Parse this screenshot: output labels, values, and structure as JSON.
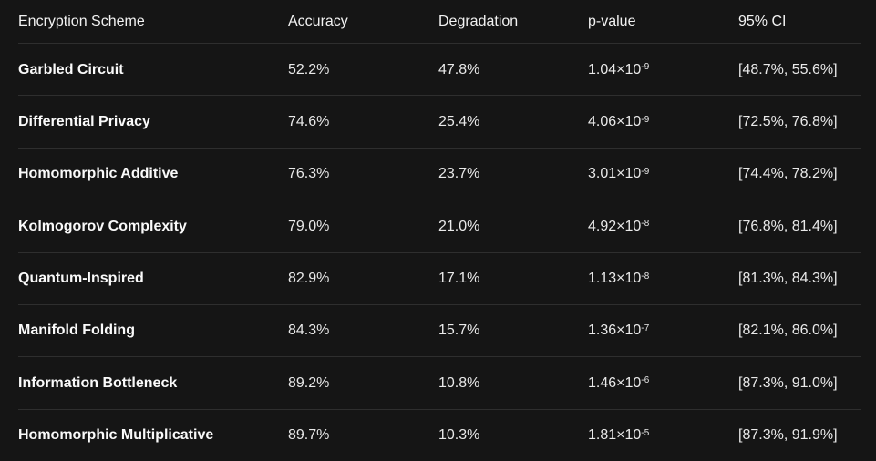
{
  "colors": {
    "background": "#151515",
    "divider": "#2e2e2e",
    "header_text": "#f2f2f2",
    "scheme_text": "#fafafa",
    "value_text": "#e9e9e9"
  },
  "table": {
    "headers": [
      "Encryption Scheme",
      "Accuracy",
      "Degradation",
      "p-value",
      "95% CI"
    ],
    "rows": [
      {
        "scheme": "Garbled Circuit",
        "accuracy": "52.2%",
        "degradation": "47.8%",
        "p_base": "1.04×10",
        "p_exp": "-9",
        "ci": "[48.7%, 55.6%]"
      },
      {
        "scheme": "Differential Privacy",
        "accuracy": "74.6%",
        "degradation": "25.4%",
        "p_base": "4.06×10",
        "p_exp": "-9",
        "ci": "[72.5%, 76.8%]"
      },
      {
        "scheme": "Homomorphic Additive",
        "accuracy": "76.3%",
        "degradation": "23.7%",
        "p_base": "3.01×10",
        "p_exp": "-9",
        "ci": "[74.4%, 78.2%]"
      },
      {
        "scheme": "Kolmogorov Complexity",
        "accuracy": "79.0%",
        "degradation": "21.0%",
        "p_base": "4.92×10",
        "p_exp": "-8",
        "ci": "[76.8%, 81.4%]"
      },
      {
        "scheme": "Quantum-Inspired",
        "accuracy": "82.9%",
        "degradation": "17.1%",
        "p_base": "1.13×10",
        "p_exp": "-8",
        "ci": "[81.3%, 84.3%]"
      },
      {
        "scheme": "Manifold Folding",
        "accuracy": "84.3%",
        "degradation": "15.7%",
        "p_base": "1.36×10",
        "p_exp": "-7",
        "ci": "[82.1%, 86.0%]"
      },
      {
        "scheme": "Information Bottleneck",
        "accuracy": "89.2%",
        "degradation": "10.8%",
        "p_base": "1.46×10",
        "p_exp": "-6",
        "ci": "[87.3%, 91.0%]"
      },
      {
        "scheme": "Homomorphic Multiplicative",
        "accuracy": "89.7%",
        "degradation": "10.3%",
        "p_base": "1.81×10",
        "p_exp": "-5",
        "ci": "[87.3%, 91.9%]"
      }
    ]
  },
  "chart_data": {
    "type": "table",
    "title": "",
    "columns": [
      "Encryption Scheme",
      "Accuracy",
      "Degradation",
      "p-value",
      "95% CI"
    ],
    "rows": [
      [
        "Garbled Circuit",
        "52.2%",
        "47.8%",
        "1.04×10⁻⁹",
        "[48.7%, 55.6%]"
      ],
      [
        "Differential Privacy",
        "74.6%",
        "25.4%",
        "4.06×10⁻⁹",
        "[72.5%, 76.8%]"
      ],
      [
        "Homomorphic Additive",
        "76.3%",
        "23.7%",
        "3.01×10⁻⁹",
        "[74.4%, 78.2%]"
      ],
      [
        "Kolmogorov Complexity",
        "79.0%",
        "21.0%",
        "4.92×10⁻⁸",
        "[76.8%, 81.4%]"
      ],
      [
        "Quantum-Inspired",
        "82.9%",
        "17.1%",
        "1.13×10⁻⁸",
        "[81.3%, 84.3%]"
      ],
      [
        "Manifold Folding",
        "84.3%",
        "15.7%",
        "1.36×10⁻⁷",
        "[82.1%, 86.0%]"
      ],
      [
        "Information Bottleneck",
        "89.2%",
        "10.8%",
        "1.46×10⁻⁶",
        "[87.3%, 91.0%]"
      ],
      [
        "Homomorphic Multiplicative",
        "89.7%",
        "10.3%",
        "1.81×10⁻⁵",
        "[87.3%, 91.9%]"
      ]
    ]
  }
}
